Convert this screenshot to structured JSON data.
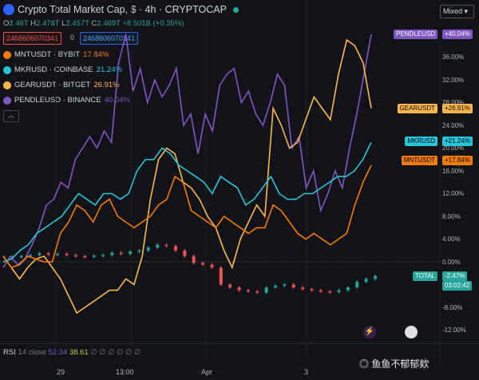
{
  "header": {
    "title": "Crypto Total Market Cap, $ · 4h · CRYPTOCAP",
    "ohlc": {
      "o": "2.46T",
      "h": "2.478T",
      "l": "2.457T",
      "c": "2.469T",
      "change": "+8.501B (+0.35%)"
    },
    "pill_red": "2468606070341",
    "pill_mid": "0",
    "pill_blue": "2468606070341"
  },
  "legend": [
    {
      "name": "MNTUSDT · BYBIT",
      "pct": "17.84%",
      "color": "#f57c00"
    },
    {
      "name": "MKRUSD · COINBASE",
      "pct": "21.24%",
      "color": "#26c6da"
    },
    {
      "name": "GEARUSDT · BITGET",
      "pct": "26.91%",
      "color": "#ffb74d"
    },
    {
      "name": "PENDLEUSD · BINANCE",
      "pct": "40.04%",
      "color": "#7e57c2"
    }
  ],
  "collapse_icon": "chevron-up-icon",
  "scale_mode": "Mixed",
  "price_axis": [
    "36.00%",
    "32.00%",
    "28.00%",
    "24.00%",
    "20.00%",
    "16.00%",
    "12.00%",
    "8.00%",
    "4.00%",
    "0.00%",
    "-4.00%",
    "-8.00%",
    "-12.00%"
  ],
  "tags": {
    "pendle": "PENDLEUSD +40.04%",
    "gear": "GEARUSDT +26.91%",
    "mkr": "MKRUSD +21.24%",
    "mnt": "MNTUSDT +17.84%",
    "total": "TOTAL -2.47%",
    "countdown": "03:02:42"
  },
  "rsi": {
    "label": "RSI",
    "period": "14 close",
    "v1": "52.34",
    "v2": "38.61",
    "rest": "∅ ∅ ∅ ∅ ∅ ∅"
  },
  "time_axis": [
    "29",
    "13:00",
    "Apr",
    "3"
  ],
  "watermark": "鱼鱼不郁郁欸",
  "colors": {
    "up": "#26a69a",
    "down": "#ef5350",
    "pendle": "#7e57c2",
    "gear": "#ffb74d",
    "mkr": "#26c6da",
    "mnt": "#f57c00"
  },
  "chart_data": {
    "type": "line",
    "ylim": [
      -14,
      42
    ],
    "x_labels": [
      "29",
      "13:00",
      "Apr",
      "3"
    ],
    "series": [
      {
        "name": "PENDLEUSD",
        "values": [
          -1,
          1,
          -0.5,
          0.5,
          3,
          6,
          10,
          11,
          14,
          13,
          18,
          20,
          22,
          20,
          23,
          21,
          35,
          40,
          30,
          34,
          28,
          32,
          29,
          31,
          34,
          24,
          26,
          19,
          26,
          23,
          31,
          33,
          34,
          28,
          30,
          26,
          24,
          28,
          33,
          31,
          20,
          22,
          13,
          16,
          9,
          12,
          16,
          13,
          20,
          26,
          33,
          40
        ]
      },
      {
        "name": "GEARUSDT",
        "values": [
          1,
          -1,
          -3,
          -1,
          0.5,
          1,
          -1,
          -3,
          -6,
          -9,
          -8,
          -7,
          -6,
          -5,
          -5,
          -3,
          -4,
          1,
          11,
          18,
          20,
          19,
          14,
          13,
          11,
          8,
          6,
          2,
          -1,
          4,
          7,
          10,
          8,
          27,
          24,
          20,
          21,
          25,
          29,
          27,
          25,
          33,
          39,
          38,
          35,
          27
        ]
      },
      {
        "name": "MKRUSD",
        "values": [
          0,
          0.5,
          2,
          3,
          5,
          6,
          7,
          8,
          10,
          12,
          11,
          10,
          12,
          12,
          11,
          12,
          16,
          18,
          18,
          20,
          19,
          17,
          16,
          15,
          14,
          12,
          15,
          14,
          13,
          10,
          11,
          13,
          15,
          12,
          11,
          11,
          12,
          12,
          13,
          14,
          15,
          15,
          16,
          18,
          21
        ]
      },
      {
        "name": "MNTUSDT",
        "values": [
          1,
          -1,
          -0.5,
          1,
          0.5,
          0,
          0,
          5,
          7,
          10,
          9,
          7,
          10,
          11,
          8,
          7,
          6,
          7,
          8,
          10,
          11,
          15,
          14,
          9,
          8,
          7,
          6,
          8,
          7,
          6,
          5,
          6,
          6,
          10,
          9,
          7,
          5,
          4,
          5,
          4,
          3,
          4,
          5,
          10,
          14,
          17
        ]
      },
      {
        "name": "TOTAL",
        "values": [
          0.8,
          0.9,
          1,
          1.2,
          1.5,
          1.3,
          1.4,
          1.2,
          1.0,
          0.9,
          1.1,
          1.2,
          1.6,
          1.4,
          1.8,
          2.0,
          2.5,
          3.0,
          2.8,
          2.0,
          1.0,
          -0.2,
          -0.5,
          -1.0,
          -4,
          -4.5,
          -5,
          -5.2,
          -5.4,
          -4.5,
          -4.2,
          -4.0,
          -4.5,
          -4.8,
          -5.0,
          -5.2,
          -5.3,
          -5.0,
          -4.5,
          -3.5,
          -3.0,
          -2.5
        ]
      }
    ]
  }
}
